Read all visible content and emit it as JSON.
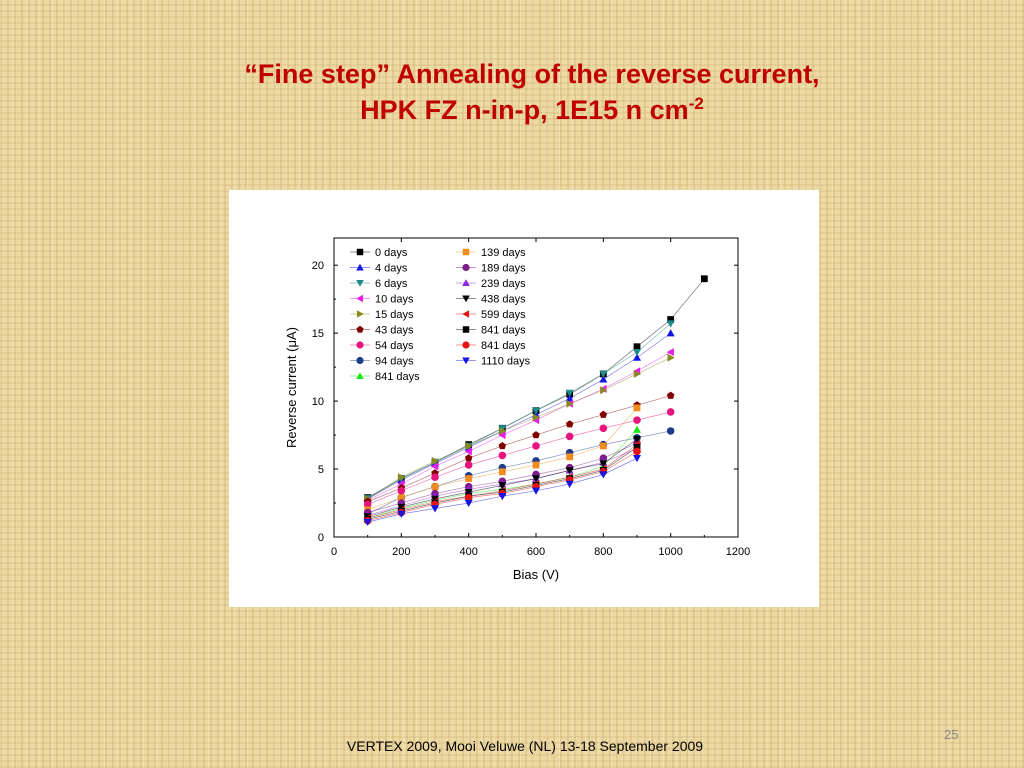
{
  "slide": {
    "title_line1": "“Fine step” Annealing of the reverse current,",
    "title_line2": "HPK FZ n-in-p, 1E15 n cm",
    "title_sup": "-2",
    "footer": "VERTEX 2009, Mooi Veluwe (NL) 13-18 September 2009",
    "page_number": "25"
  },
  "chart_data": {
    "type": "line",
    "title": "",
    "xlabel": "Bias (V)",
    "ylabel": "Reverse current (μA)",
    "xlim": [
      0,
      1200
    ],
    "ylim": [
      0,
      22
    ],
    "xticks": [
      0,
      200,
      400,
      600,
      800,
      1000,
      1200
    ],
    "yticks": [
      0,
      5,
      10,
      15,
      20
    ],
    "grid": false,
    "legend_position": "top-left",
    "series": [
      {
        "name": "0 days",
        "marker": "square",
        "color": "#000000",
        "x": [
          100,
          200,
          300,
          400,
          500,
          600,
          700,
          800,
          900,
          1000,
          1100
        ],
        "y": [
          2.9,
          4.3,
          5.5,
          6.8,
          8.0,
          9.3,
          10.5,
          12.0,
          14.0,
          16.0,
          19.0
        ]
      },
      {
        "name": "4 days",
        "marker": "triangle-up",
        "color": "#1414e6",
        "x": [
          100,
          200,
          300,
          400,
          500,
          600,
          700,
          800,
          900,
          1000
        ],
        "y": [
          2.8,
          4.2,
          5.4,
          6.6,
          7.8,
          9.0,
          10.2,
          11.6,
          13.2,
          15.0
        ]
      },
      {
        "name": "6 days",
        "marker": "triangle-down",
        "color": "#1f8a8a",
        "x": [
          100,
          200,
          300,
          400,
          500,
          600,
          700,
          800,
          900,
          1000
        ],
        "y": [
          2.85,
          4.3,
          5.5,
          6.7,
          8.0,
          9.3,
          10.6,
          12.0,
          13.6,
          15.7
        ]
      },
      {
        "name": "10 days",
        "marker": "triangle-left",
        "color": "#e61ee6",
        "x": [
          100,
          200,
          300,
          400,
          500,
          600,
          700,
          800,
          900,
          1000
        ],
        "y": [
          2.7,
          3.9,
          5.2,
          6.3,
          7.5,
          8.6,
          9.8,
          10.9,
          12.2,
          13.6
        ]
      },
      {
        "name": "15 days",
        "marker": "triangle-right",
        "color": "#8a8a1e",
        "x": [
          100,
          200,
          300,
          400,
          500,
          600,
          700,
          800,
          900,
          1000
        ],
        "y": [
          2.8,
          4.4,
          5.6,
          6.7,
          7.8,
          8.8,
          9.8,
          10.8,
          12.0,
          13.2
        ]
      },
      {
        "name": "43 days",
        "marker": "pentagon",
        "color": "#800000",
        "x": [
          100,
          200,
          300,
          400,
          500,
          600,
          700,
          800,
          900,
          1000
        ],
        "y": [
          2.6,
          3.6,
          4.7,
          5.8,
          6.7,
          7.5,
          8.3,
          9.0,
          9.7,
          10.4
        ]
      },
      {
        "name": "54 days",
        "marker": "circle",
        "color": "#e6147d",
        "x": [
          100,
          200,
          300,
          400,
          500,
          600,
          700,
          800,
          900,
          1000
        ],
        "y": [
          2.4,
          3.4,
          4.4,
          5.3,
          6.0,
          6.7,
          7.4,
          8.0,
          8.6,
          9.2
        ]
      },
      {
        "name": "94 days",
        "marker": "circle",
        "color": "#1e3c8c",
        "x": [
          100,
          200,
          300,
          400,
          500,
          600,
          700,
          800,
          900,
          1000
        ],
        "y": [
          1.7,
          2.9,
          3.7,
          4.5,
          5.1,
          5.6,
          6.2,
          6.8,
          7.3,
          7.8
        ]
      },
      {
        "name": "841 days",
        "marker": "triangle-up",
        "color": "#19e619",
        "x": [
          100,
          200,
          300,
          400,
          500,
          600,
          700,
          800,
          900
        ],
        "y": [
          1.4,
          2.1,
          2.7,
          3.2,
          3.5,
          3.9,
          4.4,
          5.2,
          7.9
        ]
      },
      {
        "name": "139 days",
        "marker": "square",
        "color": "#f08c1e",
        "x": [
          100,
          200,
          300,
          400,
          500,
          600,
          700,
          800,
          900
        ],
        "y": [
          2.0,
          2.9,
          3.7,
          4.3,
          4.8,
          5.3,
          5.9,
          6.7,
          9.5
        ]
      },
      {
        "name": "189 days",
        "marker": "circle",
        "color": "#7d1e8c",
        "x": [
          100,
          200,
          300,
          400,
          500,
          600,
          700,
          800,
          900
        ],
        "y": [
          1.8,
          2.5,
          3.2,
          3.7,
          4.1,
          4.6,
          5.1,
          5.8,
          6.9
        ]
      },
      {
        "name": "239 days",
        "marker": "triangle-up",
        "color": "#8c28e6",
        "x": [
          100,
          200,
          300,
          400,
          500,
          600,
          700,
          800,
          900
        ],
        "y": [
          1.6,
          2.3,
          3.0,
          3.5,
          3.9,
          4.3,
          4.9,
          5.5,
          6.5
        ]
      },
      {
        "name": "438 days",
        "marker": "triangle-down",
        "color": "#000000",
        "x": [
          100,
          200,
          300,
          400,
          500,
          600,
          700,
          800,
          900
        ],
        "y": [
          1.5,
          2.2,
          2.8,
          3.3,
          3.8,
          4.3,
          4.9,
          5.4,
          7.2
        ]
      },
      {
        "name": "599 days",
        "marker": "triangle-left",
        "color": "#e61414",
        "x": [
          100,
          200,
          300,
          400,
          500,
          600,
          700,
          800,
          900
        ],
        "y": [
          1.4,
          2.0,
          2.6,
          3.0,
          3.4,
          3.9,
          4.4,
          5.0,
          6.8
        ]
      },
      {
        "name": "841 days",
        "marker": "square",
        "color": "#000000",
        "x": [
          100,
          200,
          300,
          400,
          500,
          600,
          700,
          800,
          900
        ],
        "y": [
          1.3,
          1.9,
          2.5,
          3.0,
          3.3,
          3.8,
          4.3,
          4.9,
          6.6
        ]
      },
      {
        "name": "841 days",
        "marker": "circle",
        "color": "#e61414",
        "x": [
          100,
          200,
          300,
          400,
          500,
          600,
          700,
          800,
          900
        ],
        "y": [
          1.2,
          1.8,
          2.4,
          2.9,
          3.2,
          3.7,
          4.2,
          4.8,
          6.3
        ]
      },
      {
        "name": "1110 days",
        "marker": "triangle-down",
        "color": "#1414e6",
        "x": [
          100,
          200,
          300,
          400,
          500,
          600,
          700,
          800,
          900
        ],
        "y": [
          1.1,
          1.7,
          2.1,
          2.5,
          3.0,
          3.4,
          3.9,
          4.6,
          5.8
        ]
      }
    ],
    "legend": {
      "columns": [
        [
          "0 days",
          "4 days",
          "6 days",
          "10 days",
          "15 days",
          "43 days",
          "54 days",
          "94 days",
          "841 days"
        ],
        [
          "139 days",
          "189 days",
          "239 days",
          "438 days",
          "599 days",
          "841 days",
          "841 days",
          "1110 days"
        ]
      ],
      "column_series": [
        [
          0,
          1,
          2,
          3,
          4,
          5,
          6,
          7,
          8
        ],
        [
          9,
          10,
          11,
          12,
          13,
          14,
          15,
          16
        ]
      ]
    }
  }
}
